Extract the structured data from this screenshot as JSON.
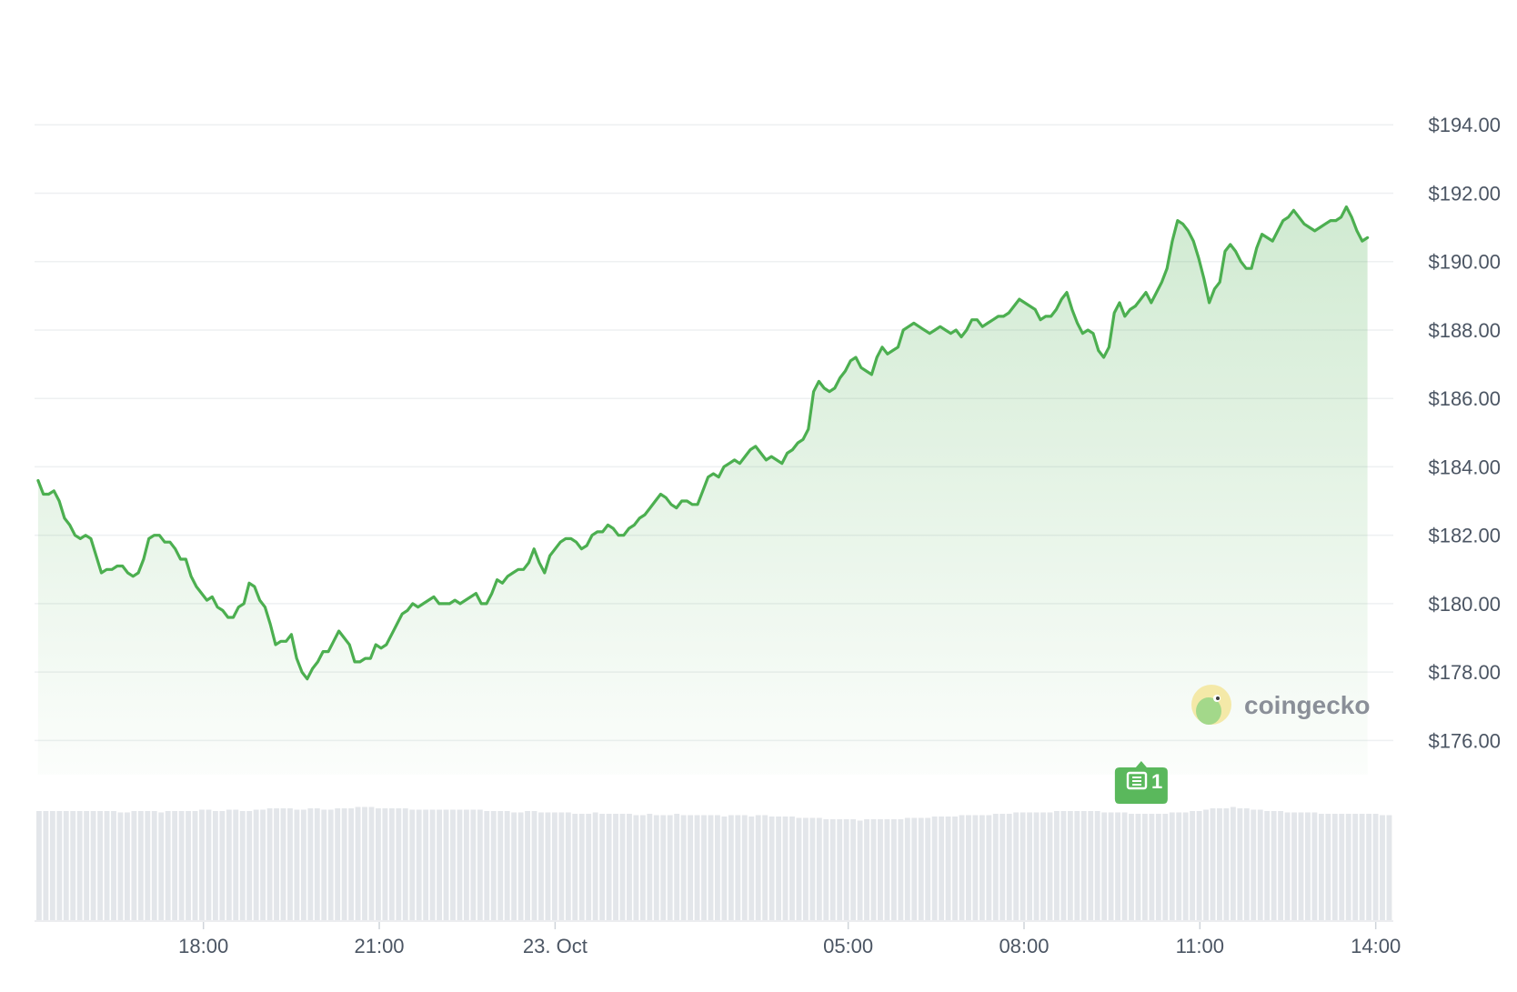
{
  "chart_data": {
    "type": "area",
    "title": "",
    "xlabel": "",
    "ylabel": "",
    "currency_prefix": "$",
    "ylim": [
      175.0,
      196.0
    ],
    "yticks": [
      "$176.00",
      "$178.00",
      "$180.00",
      "$182.00",
      "$184.00",
      "$186.00",
      "$188.00",
      "$190.00",
      "$192.00",
      "$194.00"
    ],
    "ytick_values": [
      176,
      178,
      180,
      182,
      184,
      186,
      188,
      190,
      192,
      194
    ],
    "xlim_hours": [
      -8.85,
      14.3
    ],
    "xticks": [
      {
        "label": "18:00",
        "hour": -6
      },
      {
        "label": "21:00",
        "hour": -3
      },
      {
        "label": "23. Oct",
        "hour": 0
      },
      {
        "label": "05:00",
        "hour": 5
      },
      {
        "label": "08:00",
        "hour": 8
      },
      {
        "label": "11:00",
        "hour": 11
      },
      {
        "label": "14:00",
        "hour": 14
      }
    ],
    "series": [
      {
        "line_color": "#4caf50",
        "fill_color": "#4caf50",
        "points": [
          [
            -8.82,
            183.6
          ],
          [
            -8.73,
            183.2
          ],
          [
            -8.64,
            183.2
          ],
          [
            -8.55,
            183.3
          ],
          [
            -8.46,
            183.0
          ],
          [
            -8.37,
            182.5
          ],
          [
            -8.28,
            182.3
          ],
          [
            -8.19,
            182.0
          ],
          [
            -8.1,
            181.9
          ],
          [
            -8.01,
            182.0
          ],
          [
            -7.92,
            181.9
          ],
          [
            -7.83,
            181.4
          ],
          [
            -7.74,
            180.9
          ],
          [
            -7.65,
            181.0
          ],
          [
            -7.56,
            181.0
          ],
          [
            -7.47,
            181.1
          ],
          [
            -7.38,
            181.1
          ],
          [
            -7.29,
            180.9
          ],
          [
            -7.2,
            180.8
          ],
          [
            -7.11,
            180.9
          ],
          [
            -7.02,
            181.3
          ],
          [
            -6.93,
            181.9
          ],
          [
            -6.84,
            182.0
          ],
          [
            -6.75,
            182.0
          ],
          [
            -6.66,
            181.8
          ],
          [
            -6.57,
            181.8
          ],
          [
            -6.48,
            181.6
          ],
          [
            -6.39,
            181.3
          ],
          [
            -6.3,
            181.3
          ],
          [
            -6.21,
            180.8
          ],
          [
            -6.12,
            180.5
          ],
          [
            -6.03,
            180.3
          ],
          [
            -5.94,
            180.1
          ],
          [
            -5.85,
            180.2
          ],
          [
            -5.76,
            179.9
          ],
          [
            -5.67,
            179.8
          ],
          [
            -5.58,
            179.6
          ],
          [
            -5.49,
            179.6
          ],
          [
            -5.4,
            179.9
          ],
          [
            -5.31,
            180.0
          ],
          [
            -5.22,
            180.6
          ],
          [
            -5.13,
            180.5
          ],
          [
            -5.04,
            180.1
          ],
          [
            -4.95,
            179.9
          ],
          [
            -4.86,
            179.4
          ],
          [
            -4.77,
            178.8
          ],
          [
            -4.68,
            178.9
          ],
          [
            -4.59,
            178.9
          ],
          [
            -4.5,
            179.1
          ],
          [
            -4.41,
            178.4
          ],
          [
            -4.32,
            178.0
          ],
          [
            -4.23,
            177.8
          ],
          [
            -4.14,
            178.1
          ],
          [
            -4.05,
            178.3
          ],
          [
            -3.96,
            178.6
          ],
          [
            -3.87,
            178.6
          ],
          [
            -3.78,
            178.9
          ],
          [
            -3.69,
            179.2
          ],
          [
            -3.6,
            179.0
          ],
          [
            -3.51,
            178.8
          ],
          [
            -3.42,
            178.3
          ],
          [
            -3.33,
            178.3
          ],
          [
            -3.24,
            178.4
          ],
          [
            -3.15,
            178.4
          ],
          [
            -3.06,
            178.8
          ],
          [
            -2.97,
            178.7
          ],
          [
            -2.88,
            178.8
          ],
          [
            -2.79,
            179.1
          ],
          [
            -2.7,
            179.4
          ],
          [
            -2.61,
            179.7
          ],
          [
            -2.52,
            179.8
          ],
          [
            -2.43,
            180.0
          ],
          [
            -2.34,
            179.9
          ],
          [
            -2.25,
            180.0
          ],
          [
            -2.16,
            180.1
          ],
          [
            -2.07,
            180.2
          ],
          [
            -1.98,
            180.0
          ],
          [
            -1.89,
            180.0
          ],
          [
            -1.8,
            180.0
          ],
          [
            -1.71,
            180.1
          ],
          [
            -1.62,
            180.0
          ],
          [
            -1.53,
            180.1
          ],
          [
            -1.44,
            180.2
          ],
          [
            -1.35,
            180.3
          ],
          [
            -1.26,
            180.0
          ],
          [
            -1.17,
            180.0
          ],
          [
            -1.08,
            180.3
          ],
          [
            -0.99,
            180.7
          ],
          [
            -0.9,
            180.6
          ],
          [
            -0.81,
            180.8
          ],
          [
            -0.72,
            180.9
          ],
          [
            -0.63,
            181.0
          ],
          [
            -0.54,
            181.0
          ],
          [
            -0.45,
            181.2
          ],
          [
            -0.36,
            181.6
          ],
          [
            -0.27,
            181.2
          ],
          [
            -0.18,
            180.9
          ],
          [
            -0.09,
            181.4
          ],
          [
            0.0,
            181.6
          ],
          [
            0.09,
            181.8
          ],
          [
            0.18,
            181.9
          ],
          [
            0.27,
            181.9
          ],
          [
            0.36,
            181.8
          ],
          [
            0.45,
            181.6
          ],
          [
            0.54,
            181.7
          ],
          [
            0.63,
            182.0
          ],
          [
            0.72,
            182.1
          ],
          [
            0.81,
            182.1
          ],
          [
            0.9,
            182.3
          ],
          [
            0.99,
            182.2
          ],
          [
            1.08,
            182.0
          ],
          [
            1.17,
            182.0
          ],
          [
            1.26,
            182.2
          ],
          [
            1.35,
            182.3
          ],
          [
            1.44,
            182.5
          ],
          [
            1.53,
            182.6
          ],
          [
            1.62,
            182.8
          ],
          [
            1.71,
            183.0
          ],
          [
            1.8,
            183.2
          ],
          [
            1.89,
            183.1
          ],
          [
            1.98,
            182.9
          ],
          [
            2.07,
            182.8
          ],
          [
            2.16,
            183.0
          ],
          [
            2.25,
            183.0
          ],
          [
            2.34,
            182.9
          ],
          [
            2.43,
            182.9
          ],
          [
            2.52,
            183.3
          ],
          [
            2.61,
            183.7
          ],
          [
            2.7,
            183.8
          ],
          [
            2.79,
            183.7
          ],
          [
            2.88,
            184.0
          ],
          [
            2.97,
            184.1
          ],
          [
            3.06,
            184.2
          ],
          [
            3.15,
            184.1
          ],
          [
            3.24,
            184.3
          ],
          [
            3.33,
            184.5
          ],
          [
            3.42,
            184.6
          ],
          [
            3.51,
            184.4
          ],
          [
            3.6,
            184.2
          ],
          [
            3.69,
            184.3
          ],
          [
            3.78,
            184.2
          ],
          [
            3.87,
            184.1
          ],
          [
            3.96,
            184.4
          ],
          [
            4.05,
            184.5
          ],
          [
            4.14,
            184.7
          ],
          [
            4.23,
            184.8
          ],
          [
            4.32,
            185.1
          ],
          [
            4.41,
            186.2
          ],
          [
            4.5,
            186.5
          ],
          [
            4.59,
            186.3
          ],
          [
            4.68,
            186.2
          ],
          [
            4.77,
            186.3
          ],
          [
            4.86,
            186.6
          ],
          [
            4.95,
            186.8
          ],
          [
            5.04,
            187.1
          ],
          [
            5.13,
            187.2
          ],
          [
            5.22,
            186.9
          ],
          [
            5.31,
            186.8
          ],
          [
            5.4,
            186.7
          ],
          [
            5.49,
            187.2
          ],
          [
            5.58,
            187.5
          ],
          [
            5.67,
            187.3
          ],
          [
            5.76,
            187.4
          ],
          [
            5.85,
            187.5
          ],
          [
            5.94,
            188.0
          ],
          [
            6.03,
            188.1
          ],
          [
            6.12,
            188.2
          ],
          [
            6.21,
            188.1
          ],
          [
            6.3,
            188.0
          ],
          [
            6.39,
            187.9
          ],
          [
            6.48,
            188.0
          ],
          [
            6.57,
            188.1
          ],
          [
            6.66,
            188.0
          ],
          [
            6.75,
            187.9
          ],
          [
            6.84,
            188.0
          ],
          [
            6.93,
            187.8
          ],
          [
            7.02,
            188.0
          ],
          [
            7.11,
            188.3
          ],
          [
            7.2,
            188.3
          ],
          [
            7.29,
            188.1
          ],
          [
            7.38,
            188.2
          ],
          [
            7.47,
            188.3
          ],
          [
            7.56,
            188.4
          ],
          [
            7.65,
            188.4
          ],
          [
            7.74,
            188.5
          ],
          [
            7.83,
            188.7
          ],
          [
            7.92,
            188.9
          ],
          [
            8.01,
            188.8
          ],
          [
            8.1,
            188.7
          ],
          [
            8.19,
            188.6
          ],
          [
            8.28,
            188.3
          ],
          [
            8.37,
            188.4
          ],
          [
            8.46,
            188.4
          ],
          [
            8.55,
            188.6
          ],
          [
            8.64,
            188.9
          ],
          [
            8.73,
            189.1
          ],
          [
            8.82,
            188.6
          ],
          [
            8.91,
            188.2
          ],
          [
            9.0,
            187.9
          ],
          [
            9.09,
            188.0
          ],
          [
            9.18,
            187.9
          ],
          [
            9.27,
            187.4
          ],
          [
            9.36,
            187.2
          ],
          [
            9.45,
            187.5
          ],
          [
            9.54,
            188.5
          ],
          [
            9.63,
            188.8
          ],
          [
            9.72,
            188.4
          ],
          [
            9.81,
            188.6
          ],
          [
            9.9,
            188.7
          ],
          [
            9.99,
            188.9
          ],
          [
            10.08,
            189.1
          ],
          [
            10.17,
            188.8
          ],
          [
            10.26,
            189.1
          ],
          [
            10.35,
            189.4
          ],
          [
            10.44,
            189.8
          ],
          [
            10.53,
            190.6
          ],
          [
            10.62,
            191.2
          ],
          [
            10.71,
            191.1
          ],
          [
            10.8,
            190.9
          ],
          [
            10.89,
            190.6
          ],
          [
            10.98,
            190.1
          ],
          [
            11.07,
            189.5
          ],
          [
            11.16,
            188.8
          ],
          [
            11.25,
            189.2
          ],
          [
            11.34,
            189.4
          ],
          [
            11.43,
            190.3
          ],
          [
            11.52,
            190.5
          ],
          [
            11.61,
            190.3
          ],
          [
            11.7,
            190.0
          ],
          [
            11.79,
            189.8
          ],
          [
            11.88,
            189.8
          ],
          [
            11.97,
            190.4
          ],
          [
            12.06,
            190.8
          ],
          [
            12.15,
            190.7
          ],
          [
            12.24,
            190.6
          ],
          [
            12.33,
            190.9
          ],
          [
            12.42,
            191.2
          ],
          [
            12.51,
            191.3
          ],
          [
            12.6,
            191.5
          ],
          [
            12.69,
            191.3
          ],
          [
            12.78,
            191.1
          ],
          [
            12.87,
            191.0
          ],
          [
            12.96,
            190.9
          ],
          [
            13.05,
            191.0
          ],
          [
            13.14,
            191.1
          ],
          [
            13.23,
            191.2
          ],
          [
            13.32,
            191.2
          ],
          [
            13.41,
            191.3
          ],
          [
            13.5,
            191.6
          ],
          [
            13.59,
            191.3
          ],
          [
            13.68,
            190.9
          ],
          [
            13.77,
            190.6
          ],
          [
            13.86,
            190.7
          ]
        ]
      }
    ],
    "volume": {
      "color": "#e3e6ea",
      "relative_values": [
        0.8,
        0.8,
        0.8,
        0.8,
        0.8,
        0.8,
        0.8,
        0.8,
        0.8,
        0.8,
        0.8,
        0.8,
        0.79,
        0.79,
        0.8,
        0.8,
        0.8,
        0.8,
        0.79,
        0.8,
        0.8,
        0.8,
        0.8,
        0.8,
        0.81,
        0.81,
        0.8,
        0.8,
        0.81,
        0.81,
        0.8,
        0.8,
        0.81,
        0.81,
        0.82,
        0.82,
        0.82,
        0.82,
        0.81,
        0.81,
        0.82,
        0.82,
        0.81,
        0.81,
        0.82,
        0.82,
        0.82,
        0.83,
        0.83,
        0.83,
        0.82,
        0.82,
        0.82,
        0.82,
        0.82,
        0.81,
        0.81,
        0.81,
        0.81,
        0.81,
        0.81,
        0.81,
        0.81,
        0.81,
        0.81,
        0.81,
        0.8,
        0.8,
        0.8,
        0.8,
        0.79,
        0.79,
        0.8,
        0.8,
        0.79,
        0.79,
        0.79,
        0.79,
        0.79,
        0.78,
        0.78,
        0.78,
        0.79,
        0.78,
        0.78,
        0.78,
        0.78,
        0.78,
        0.77,
        0.77,
        0.78,
        0.77,
        0.77,
        0.77,
        0.78,
        0.77,
        0.77,
        0.77,
        0.77,
        0.77,
        0.77,
        0.76,
        0.77,
        0.77,
        0.77,
        0.76,
        0.77,
        0.77,
        0.76,
        0.76,
        0.76,
        0.76,
        0.75,
        0.75,
        0.75,
        0.75,
        0.74,
        0.74,
        0.74,
        0.74,
        0.74,
        0.73,
        0.74,
        0.74,
        0.74,
        0.74,
        0.74,
        0.74,
        0.75,
        0.75,
        0.75,
        0.75,
        0.76,
        0.76,
        0.76,
        0.76,
        0.77,
        0.77,
        0.77,
        0.77,
        0.77,
        0.78,
        0.78,
        0.78,
        0.79,
        0.79,
        0.79,
        0.79,
        0.79,
        0.79,
        0.8,
        0.8,
        0.8,
        0.8,
        0.8,
        0.8,
        0.8,
        0.79,
        0.79,
        0.79,
        0.79,
        0.78,
        0.78,
        0.78,
        0.78,
        0.78,
        0.78,
        0.79,
        0.79,
        0.79,
        0.8,
        0.8,
        0.81,
        0.82,
        0.82,
        0.82,
        0.83,
        0.82,
        0.82,
        0.81,
        0.81,
        0.8,
        0.8,
        0.8,
        0.79,
        0.79,
        0.79,
        0.79,
        0.79,
        0.78,
        0.78,
        0.78,
        0.78,
        0.78,
        0.78,
        0.78,
        0.78,
        0.78,
        0.77,
        0.77
      ]
    }
  },
  "watermark": {
    "brand": "coingecko",
    "logo_bg": "#f4e9a8",
    "logo_face": "#a3d88a"
  },
  "news_marker": {
    "hour": 10.0,
    "count": "1",
    "color": "#5ab85c",
    "icon": "newspaper-icon"
  }
}
